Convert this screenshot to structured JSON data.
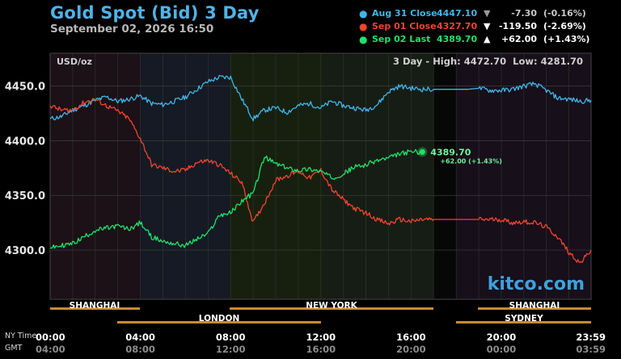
{
  "header": {
    "title": "Gold Spot (Bid) 3 Day",
    "date": "September 02, 2026 16:50"
  },
  "legend": [
    {
      "name": "Aug 31 Close",
      "value": "4447.10",
      "arrow": "▼",
      "change": "-7.30",
      "pct": "(-0.16%)",
      "color": "#3fb6e8"
    },
    {
      "name": "Sep 01 Close",
      "value": "4327.70",
      "arrow": "▼",
      "change": "-119.50",
      "pct": "(-2.69%)",
      "color": "#f0442f"
    },
    {
      "name": "Sep 02 Last",
      "value": "4389.70",
      "arrow": "▲",
      "change": "+62.00",
      "pct": "(+1.43%)",
      "color": "#22e06a"
    }
  ],
  "plot_labels": {
    "unit": "USD/oz",
    "range": "3 Day - High: 4472.70  Low: 4281.70",
    "last_value": "4389.70",
    "last_change": "+62.00 (+1.43%)",
    "watermark": "kitco.com"
  },
  "sessions_row1": [
    "SHANGHAI",
    "NEW YORK",
    "SHANGHAI"
  ],
  "sessions_row2": [
    "LONDON",
    "SYDNEY"
  ],
  "time_axis": {
    "ny_label": "NY Time",
    "gmt_label": "GMT",
    "ny_ticks": [
      "00:00",
      "04:00",
      "08:00",
      "12:00",
      "16:00",
      "20:00",
      "23:59"
    ],
    "gmt_ticks": [
      "04:00",
      "08:00",
      "12:00",
      "16:00",
      "20:00",
      "00:00",
      "03:59"
    ]
  },
  "colors": {
    "aug31": "#3fb6e8",
    "sep01": "#f0442f",
    "sep02": "#22e06a",
    "session_bar": "#c88a32",
    "title": "#4fb3e8"
  },
  "chart_data": {
    "type": "line",
    "title": "Gold Spot (Bid) 3 Day",
    "ylabel": "USD/oz",
    "ylim": [
      4255,
      4480
    ],
    "yticks": [
      4300,
      4350,
      4400,
      4450
    ],
    "xlabel": "NY Time",
    "x_hours": [
      0,
      0.5,
      1,
      1.5,
      2,
      2.5,
      3,
      3.5,
      4,
      4.5,
      5,
      5.5,
      6,
      6.5,
      7,
      7.5,
      8,
      8.5,
      9,
      9.5,
      10,
      10.5,
      11,
      11.5,
      12,
      12.5,
      13,
      13.5,
      14,
      14.5,
      15,
      15.5,
      16,
      16.5,
      17,
      17.5,
      18,
      18.5,
      19,
      19.5,
      20,
      20.5,
      21,
      21.5,
      22,
      22.5,
      23,
      23.5,
      23.98
    ],
    "series": [
      {
        "name": "Aug 31 Close",
        "color": "#3fb6e8",
        "values": [
          4420,
          4422,
          4428,
          4432,
          4437,
          4440,
          4436,
          4438,
          4441,
          4434,
          4433,
          4436,
          4440,
          4447,
          4454,
          4458,
          4458,
          4438,
          4420,
          4428,
          4430,
          4426,
          4432,
          4434,
          4430,
          4436,
          4432,
          4430,
          4428,
          4433,
          4445,
          4450,
          4448,
          4447,
          4447,
          4447,
          4447,
          4447,
          4448,
          4446,
          4446,
          4447,
          4450,
          4452,
          4446,
          4439,
          4438,
          4436,
          4437
        ]
      },
      {
        "name": "Sep 01 Close",
        "color": "#f0442f",
        "values": [
          4432,
          4428,
          4428,
          4435,
          4438,
          4432,
          4427,
          4420,
          4402,
          4378,
          4375,
          4372,
          4373,
          4380,
          4382,
          4378,
          4370,
          4362,
          4325,
          4343,
          4364,
          4368,
          4372,
          4366,
          4373,
          4355,
          4346,
          4338,
          4334,
          4328,
          4324,
          4328,
          4326,
          4328,
          4328,
          4328,
          4328,
          4328,
          4328,
          4328,
          4328,
          4325,
          4326,
          4325,
          4321,
          4312,
          4298,
          4288,
          4300
        ]
      },
      {
        "name": "Sep 02 Last",
        "color": "#22e06a",
        "values": [
          4302,
          4304,
          4306,
          4312,
          4318,
          4320,
          4322,
          4319,
          4325,
          4312,
          4308,
          4306,
          4304,
          4310,
          4315,
          4332,
          4334,
          4345,
          4352,
          4385,
          4379,
          4375,
          4373,
          4374,
          4372,
          4366,
          4370,
          4376,
          4378,
          4382,
          4384,
          4388,
          4390,
          4389.7
        ]
      }
    ],
    "annotations": [
      "4389.70",
      "+62.00 (+1.43%)",
      "3 Day - High: 4472.70  Low: 4281.70"
    ]
  }
}
